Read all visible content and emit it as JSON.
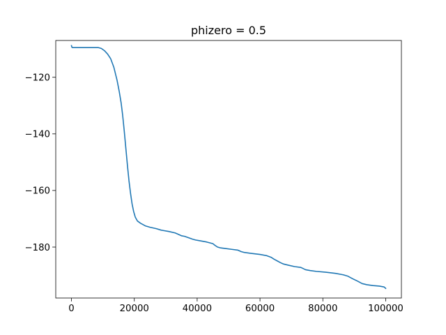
{
  "chart_data": {
    "type": "line",
    "title": "phizero = 0.5",
    "xlabel": "",
    "ylabel": "",
    "xlim": [
      -5000,
      105000
    ],
    "ylim": [
      -198,
      -107
    ],
    "grid": false,
    "legend": "none",
    "xticks": [
      0,
      20000,
      40000,
      60000,
      80000,
      100000
    ],
    "xtick_labels": [
      "0",
      "20000",
      "40000",
      "60000",
      "80000",
      "100000"
    ],
    "yticks": [
      -120,
      -140,
      -160,
      -180
    ],
    "ytick_labels": [
      "−120",
      "−140",
      "−160",
      "−180"
    ],
    "series": [
      {
        "color": "#1f77b4",
        "x": [
          0,
          150,
          300,
          2000,
          5000,
          8500,
          9500,
          10500,
          11500,
          12500,
          13500,
          14500,
          15200,
          15800,
          16300,
          16800,
          17300,
          17800,
          18300,
          18800,
          19300,
          19800,
          20300,
          21000,
          22000,
          23500,
          25000,
          27000,
          28500,
          29500,
          31000,
          33000,
          34000,
          35000,
          36000,
          37500,
          38500,
          39500,
          41000,
          43000,
          45000,
          45800,
          46500,
          47500,
          49000,
          51000,
          53000,
          54000,
          55000,
          57000,
          60000,
          62000,
          63500,
          64500,
          65500,
          66500,
          67500,
          69000,
          71000,
          73000,
          74500,
          76000,
          78000,
          81000,
          84000,
          86500,
          88000,
          89500,
          91000,
          92500,
          94000,
          96000,
          98000,
          99500,
          100000
        ],
        "y": [
          -108.8,
          -109.4,
          -109.5,
          -109.5,
          -109.5,
          -109.5,
          -109.8,
          -110.6,
          -111.8,
          -113.5,
          -116.5,
          -121.0,
          -125.0,
          -129.0,
          -133.5,
          -139.0,
          -145.0,
          -151.0,
          -156.5,
          -161.0,
          -164.8,
          -167.5,
          -169.4,
          -170.8,
          -171.6,
          -172.5,
          -173.0,
          -173.5,
          -174.0,
          -174.2,
          -174.5,
          -175.0,
          -175.5,
          -176.0,
          -176.2,
          -176.8,
          -177.2,
          -177.5,
          -177.8,
          -178.2,
          -178.8,
          -179.5,
          -180.0,
          -180.3,
          -180.5,
          -180.8,
          -181.1,
          -181.6,
          -181.9,
          -182.2,
          -182.6,
          -183.0,
          -183.6,
          -184.3,
          -184.9,
          -185.5,
          -186.0,
          -186.4,
          -186.9,
          -187.2,
          -188.0,
          -188.3,
          -188.6,
          -188.9,
          -189.3,
          -189.8,
          -190.3,
          -191.2,
          -192.0,
          -192.9,
          -193.3,
          -193.6,
          -193.8,
          -194.1,
          -194.6
        ]
      }
    ]
  }
}
